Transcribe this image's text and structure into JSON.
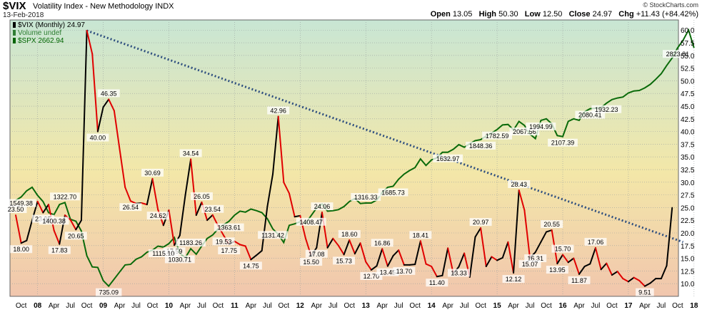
{
  "header": {
    "symbol": "$VIX",
    "name": "Volatility Index - New Methodology",
    "exchange": "INDX",
    "date": "13-Feb-2018",
    "watermark": "© StockCharts.com",
    "open_label": "Open",
    "open": "13.05",
    "high_label": "High",
    "high": "50.30",
    "low_label": "Low",
    "low": "12.50",
    "close_label": "Close",
    "close": "24.97",
    "chg_label": "Chg",
    "chg": "+11.43 (+84.42%)"
  },
  "legend": [
    {
      "text": "$VIX (Monthly) 24.97",
      "color": "#000000"
    },
    {
      "text": "Volume undef",
      "color": "#2e7d32"
    },
    {
      "text": "$SPX 2662.94",
      "color": "#006400"
    }
  ],
  "colors": {
    "vix_up": "#000000",
    "vix_down": "#e00000",
    "spx": "#0a6a0a",
    "trendline": "#2f4f7f",
    "grid": "#9aa0a0",
    "bg_top": "#c8e6d4",
    "bg_mid": "#f3e7a8",
    "bg_bottom": "#f1c6ad"
  },
  "chart_data": {
    "type": "line",
    "y_axis": {
      "min": 7.5,
      "max": 62,
      "side": "right",
      "ticks": [
        10.0,
        12.5,
        15.0,
        17.5,
        20.0,
        22.5,
        25.0,
        27.5,
        30.0,
        32.5,
        35.0,
        37.5,
        40.0,
        42.5,
        45.0,
        47.5,
        50.0,
        52.5,
        55.0,
        57.5,
        60.0
      ]
    },
    "x_axis": {
      "labels": [
        "Oct",
        "08",
        "Apr",
        "Jul",
        "Oct",
        "09",
        "Apr",
        "Jul",
        "Oct",
        "10",
        "Apr",
        "Jul",
        "Oct",
        "11",
        "Apr",
        "Jul",
        "Oct",
        "12",
        "Apr",
        "Jul",
        "Oct",
        "13",
        "Apr",
        "Jul",
        "Oct",
        "14",
        "Apr",
        "Jul",
        "Oct",
        "15",
        "Apr",
        "Jul",
        "Oct",
        "16",
        "Apr",
        "Jul",
        "Oct",
        "17",
        "Apr",
        "Jul",
        "Oct",
        "18"
      ],
      "year_labels": [
        "08",
        "09",
        "10",
        "11",
        "12",
        "13",
        "14",
        "15",
        "16",
        "17",
        "18"
      ]
    },
    "series": [
      {
        "name": "$VIX (Monthly)",
        "start": "2007-09",
        "values": [
          23.5,
          18.0,
          18.5,
          22.5,
          26.2,
          24.0,
          25.6,
          20.5,
          17.8,
          23.5,
          22.6,
          20.65,
          22.5,
          59.9,
          55.3,
          40.0,
          44.8,
          46.35,
          44.1,
          36.5,
          29.0,
          26.3,
          25.8,
          25.9,
          25.6,
          30.69,
          24.62,
          21.5,
          24.5,
          17.59,
          19.5,
          27.4,
          34.54,
          23.5,
          26.05,
          22.5,
          23.54,
          21.4,
          19.53,
          17.75,
          18.35,
          17.7,
          17.4,
          14.75,
          15.6,
          16.5,
          25.2,
          31.6,
          42.96,
          29.96,
          27.8,
          23.2,
          23.4,
          18.9,
          15.5,
          17.08,
          24.06,
          17.08,
          18.9,
          17.5,
          15.73,
          18.6,
          15.9,
          18.0,
          14.3,
          12.7,
          13.5,
          16.86,
          13.45,
          15.5,
          16.6,
          13.7,
          13.7,
          13.8,
          18.41,
          13.88,
          13.4,
          11.4,
          11.6,
          17.0,
          12.0,
          13.33,
          16.0,
          11.3,
          19.2,
          20.97,
          13.4,
          15.3,
          14.6,
          15.1,
          18.2,
          12.12,
          28.43,
          24.5,
          15.07,
          16.2,
          18.2,
          20.2,
          20.55,
          13.95,
          15.7,
          14.2,
          15.0,
          11.87,
          13.4,
          13.9,
          17.06,
          12.8,
          14.0,
          11.7,
          12.4,
          11.0,
          10.4,
          11.2,
          10.6,
          9.51,
          10.1,
          11.0,
          11.0,
          13.54,
          24.97
        ]
      },
      {
        "name": "$SPX",
        "start": "2007-09",
        "values": [
          26.4,
          27.1,
          28.3,
          29.0,
          27.4,
          26.2,
          24.0,
          23.6,
          25.6,
          26.0,
          22.7,
          22.3,
          20.4,
          15.5,
          13.3,
          13.2,
          10.6,
          9.51,
          10.9,
          12.3,
          13.7,
          13.8,
          14.8,
          15.3,
          16.2,
          16.6,
          17.4,
          17.2,
          17.9,
          19.1,
          16.0,
          15.1,
          16.9,
          15.8,
          17.4,
          18.9,
          19.6,
          20.8,
          21.6,
          22.3,
          23.5,
          24.3,
          24.1,
          24.7,
          24.4,
          24.0,
          22.8,
          20.8,
          19.7,
          18.1,
          21.5,
          21.8,
          22.2,
          21.9,
          23.4,
          24.9,
          25.7,
          24.3,
          24.4,
          24.6,
          25.2,
          26.2,
          26.8,
          25.8,
          25.9,
          25.9,
          26.5,
          28.0,
          29.0,
          29.2,
          30.6,
          31.6,
          32.3,
          32.9,
          34.6,
          33.3,
          34.4,
          34.8,
          35.9,
          35.9,
          36.5,
          37.4,
          36.9,
          37.6,
          38.2,
          38.4,
          39.1,
          39.7,
          40.4,
          41.3,
          41.4,
          40.3,
          42.0,
          41.2,
          39.5,
          38.6,
          42.2,
          42.5,
          41.5,
          39.2,
          39.0,
          42.0,
          42.5,
          42.2,
          43.9,
          44.5,
          44.6,
          44.7,
          45.6,
          46.3,
          46.6,
          46.8,
          47.6,
          48.0,
          48.1,
          48.6,
          49.3,
          50.3,
          51.4,
          53.0,
          54.5,
          56.5,
          58.0,
          60.0,
          56.5
        ]
      }
    ],
    "annotations_vix": [
      "18.00",
      "26.54",
      "23.95",
      "17.83",
      "20.65",
      "46.35",
      "40.00",
      "30.69",
      "24.62",
      "17.59",
      "34.54",
      "26.05",
      "23.54",
      "23.50",
      "19.53",
      "17.75",
      "14.75",
      "42.96",
      "24.06",
      "15.50",
      "17.08",
      "15.73",
      "18.60",
      "16.86",
      "12.70",
      "13.45",
      "18.41",
      "13.70",
      "11.40",
      "16.31",
      "13.33",
      "20.97",
      "12.12",
      "28.43",
      "15.07",
      "20.55",
      "15.70",
      "13.95",
      "11.87",
      "17.06",
      "9.51"
    ],
    "annotations_spx": [
      "1549.38",
      "1400.38",
      "1322.70",
      "735.09",
      "1115.10",
      "1030.71",
      "1183.26",
      "1363.61",
      "1131.42",
      "1408.47",
      "1316.33",
      "1685.73",
      "1632.97",
      "1848.36",
      "1782.59",
      "2067.56",
      "1994.99",
      "2107.39",
      "2080.41",
      "1932.23",
      "2823.81"
    ],
    "trendline": {
      "from": {
        "date": "2008-10",
        "value": 59.9
      },
      "to": {
        "date": "2017-11",
        "value": 18.2
      }
    }
  }
}
